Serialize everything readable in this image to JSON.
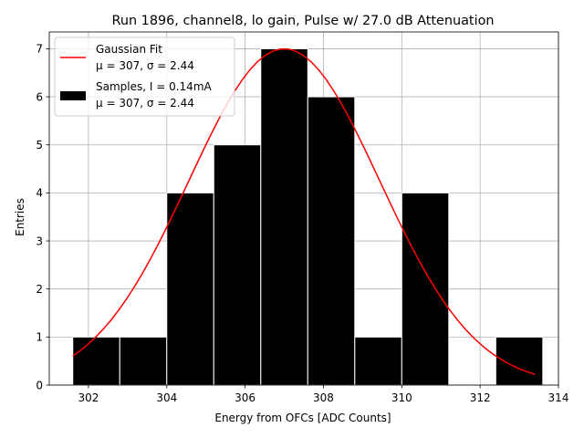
{
  "chart_data": {
    "type": "bar",
    "title": "Run 1896, channel8, lo gain, Pulse w/ 27.0 dB Attenuation",
    "xlabel": "Energy from OFCs [ADC Counts]",
    "ylabel": "Entries",
    "xlim": [
      301,
      314
    ],
    "ylim": [
      0,
      7.35
    ],
    "xticks": [
      302,
      304,
      306,
      308,
      310,
      312,
      314
    ],
    "yticks": [
      0,
      1,
      2,
      3,
      4,
      5,
      6,
      7
    ],
    "grid": true,
    "legend_position": "top-left",
    "histogram": {
      "name": "Samples, I = 0.14mA",
      "stats": "μ = 307, σ = 2.44",
      "color": "#000000",
      "bin_edges": [
        301.6,
        302.8,
        304.0,
        305.2,
        306.4,
        307.6,
        308.8,
        310.0,
        311.2,
        312.4,
        313.6
      ],
      "values": [
        1,
        1,
        4,
        5,
        7,
        6,
        1,
        4,
        0,
        1
      ]
    },
    "fit": {
      "name": "Gaussian Fit",
      "stats": "μ = 307, σ = 2.44",
      "color": "#ff0000",
      "mean": 307.0,
      "sigma": 2.44,
      "amplitude": 7.0,
      "x_range": [
        301.6,
        313.4
      ]
    }
  }
}
